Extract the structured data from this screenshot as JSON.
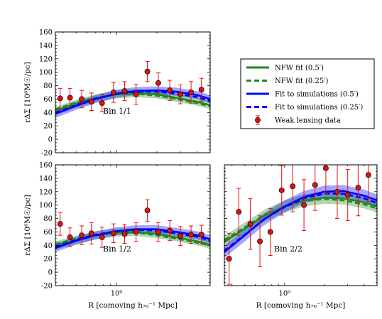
{
  "chart_data": [
    {
      "type": "line",
      "panel_label": "Bin 1/1",
      "xlabel": "",
      "ylabel": "rΔΣ [10⁶M☉/pc]",
      "xscale": "log",
      "xlim": [
        0.35,
        5.0
      ],
      "ylim": [
        -20,
        160
      ],
      "yticks": [
        -20,
        0,
        20,
        40,
        60,
        80,
        100,
        120,
        140,
        160
      ],
      "xtick_labels": [],
      "series": [
        {
          "name": "NFW fit (0.5′)",
          "style": "solid",
          "color": "#1f8a1f",
          "x": [
            0.35,
            0.5,
            0.7,
            1.0,
            1.4,
            2.0,
            2.8,
            4.0,
            5.0
          ],
          "y": [
            42,
            53,
            61,
            67,
            69,
            67,
            62,
            56,
            51
          ],
          "band": 6
        },
        {
          "name": "NFW fit (0.25′)",
          "style": "dashed",
          "color": "#1f8a1f",
          "x": [
            0.35,
            0.5,
            0.7,
            1.0,
            1.4,
            2.0,
            2.8,
            4.0,
            5.0
          ],
          "y": [
            45,
            55,
            62,
            67,
            68,
            65,
            60,
            54,
            49
          ]
        },
        {
          "name": "Fit to simulations (0.5′)",
          "style": "solid",
          "color": "#0000ff",
          "x": [
            0.35,
            0.5,
            0.7,
            1.0,
            1.4,
            2.0,
            2.8,
            4.0,
            5.0
          ],
          "y": [
            38,
            50,
            60,
            68,
            72,
            73,
            71,
            66,
            60
          ],
          "band": 6
        },
        {
          "name": "Fit to simulations (0.25′)",
          "style": "dashed",
          "color": "#0000ff",
          "x": [
            0.35,
            0.5,
            0.7,
            1.0,
            1.4,
            2.0,
            2.8,
            4.0,
            5.0
          ],
          "y": [
            40,
            51,
            61,
            68,
            71,
            71,
            68,
            63,
            57
          ]
        },
        {
          "name": "Weak lensing data",
          "style": "errorbar",
          "color": "#dd1111",
          "x": [
            0.38,
            0.45,
            0.55,
            0.65,
            0.78,
            0.95,
            1.15,
            1.4,
            1.7,
            2.05,
            2.5,
            3.0,
            3.6,
            4.3
          ],
          "y": [
            61,
            62,
            60,
            56,
            54,
            70,
            72,
            67,
            101,
            84,
            73,
            67,
            70,
            74
          ],
          "err": [
            15,
            14,
            13,
            13,
            13,
            15,
            14,
            15,
            15,
            15,
            15,
            14,
            16,
            17
          ]
        }
      ]
    },
    {
      "type": "line",
      "panel_label": "Bin 1/2",
      "xlabel": "R [comoving h₇₀⁻¹ Mpc]",
      "ylabel": "rΔΣ [10⁶M☉/pc]",
      "xscale": "log",
      "xlim": [
        0.35,
        5.0
      ],
      "ylim": [
        -20,
        160
      ],
      "yticks": [
        -20,
        0,
        20,
        40,
        60,
        80,
        100,
        120,
        140,
        160
      ],
      "xtick_labels": [
        "10⁰"
      ],
      "series": [
        {
          "name": "NFW fit (0.5′)",
          "style": "solid",
          "color": "#1f8a1f",
          "x": [
            0.35,
            0.5,
            0.7,
            1.0,
            1.4,
            2.0,
            2.8,
            4.0,
            5.0
          ],
          "y": [
            40,
            48,
            55,
            59,
            60,
            57,
            52,
            46,
            41
          ],
          "band": 6
        },
        {
          "name": "NFW fit (0.25′)",
          "style": "dashed",
          "color": "#1f8a1f",
          "x": [
            0.35,
            0.5,
            0.7,
            1.0,
            1.4,
            2.0,
            2.8,
            4.0,
            5.0
          ],
          "y": [
            42,
            50,
            56,
            59,
            59,
            55,
            50,
            44,
            40
          ]
        },
        {
          "name": "Fit to simulations (0.5′)",
          "style": "solid",
          "color": "#0000ff",
          "x": [
            0.35,
            0.5,
            0.7,
            1.0,
            1.4,
            2.0,
            2.8,
            4.0,
            5.0
          ],
          "y": [
            36,
            47,
            55,
            61,
            64,
            64,
            60,
            55,
            49
          ],
          "band": 6
        },
        {
          "name": "Fit to simulations (0.25′)",
          "style": "dashed",
          "color": "#0000ff",
          "x": [
            0.35,
            0.5,
            0.7,
            1.0,
            1.4,
            2.0,
            2.8,
            4.0,
            5.0
          ],
          "y": [
            38,
            48,
            56,
            61,
            63,
            62,
            58,
            53,
            47
          ]
        },
        {
          "name": "Weak lensing data",
          "style": "errorbar",
          "color": "#dd1111",
          "x": [
            0.38,
            0.45,
            0.55,
            0.65,
            0.78,
            0.95,
            1.15,
            1.4,
            1.7,
            2.05,
            2.5,
            3.0,
            3.6,
            4.3
          ],
          "y": [
            72,
            52,
            55,
            58,
            52,
            58,
            57,
            60,
            92,
            60,
            62,
            54,
            56,
            56
          ],
          "err": [
            17,
            14,
            14,
            16,
            15,
            14,
            14,
            14,
            16,
            14,
            15,
            14,
            13,
            14
          ]
        }
      ]
    },
    {
      "type": "line",
      "panel_label": "Bin 2/2",
      "xlabel": "R [comoving h₇₀⁻¹ Mpc]",
      "ylabel": "",
      "xscale": "log",
      "xlim": [
        0.35,
        5.0
      ],
      "ylim": [
        -20,
        160
      ],
      "yticks": [],
      "xtick_labels": [
        "10⁰"
      ],
      "series": [
        {
          "name": "NFW fit (0.5′)",
          "style": "solid",
          "color": "#1f8a1f",
          "x": [
            0.35,
            0.5,
            0.7,
            1.0,
            1.4,
            2.0,
            2.8,
            4.0,
            5.0
          ],
          "y": [
            45,
            65,
            84,
            98,
            107,
            111,
            110,
            104,
            98
          ],
          "band": 9
        },
        {
          "name": "NFW fit (0.25′)",
          "style": "dashed",
          "color": "#1f8a1f",
          "x": [
            0.35,
            0.5,
            0.7,
            1.0,
            1.4,
            2.0,
            2.8,
            4.0,
            5.0
          ],
          "y": [
            48,
            67,
            85,
            98,
            106,
            109,
            107,
            101,
            95
          ]
        },
        {
          "name": "Fit to simulations (0.5′)",
          "style": "solid",
          "color": "#0000ff",
          "x": [
            0.35,
            0.5,
            0.7,
            1.0,
            1.4,
            2.0,
            2.8,
            4.0,
            5.0
          ],
          "y": [
            30,
            55,
            79,
            98,
            112,
            120,
            121,
            114,
            107
          ],
          "band": 9
        },
        {
          "name": "Fit to simulations (0.25′)",
          "style": "dashed",
          "color": "#0000ff",
          "x": [
            0.35,
            0.5,
            0.7,
            1.0,
            1.4,
            2.0,
            2.8,
            4.0,
            5.0
          ],
          "y": [
            32,
            56,
            79,
            97,
            110,
            117,
            117,
            110,
            103
          ]
        },
        {
          "name": "Weak lensing data",
          "style": "errorbar",
          "color": "#dd1111",
          "x": [
            0.38,
            0.45,
            0.55,
            0.65,
            0.78,
            0.95,
            1.15,
            1.4,
            1.7,
            2.05,
            2.5,
            3.0,
            3.6,
            4.3
          ],
          "y": [
            20,
            90,
            72,
            46,
            60,
            122,
            128,
            100,
            130,
            155,
            120,
            115,
            126,
            145
          ],
          "err": [
            38,
            35,
            38,
            38,
            35,
            37,
            38,
            38,
            38,
            38,
            40,
            38,
            42,
            40
          ]
        }
      ]
    }
  ],
  "legend": {
    "placement": "right of top-left panel",
    "items": [
      {
        "label": "NFW fit (0.5′)",
        "style": "solid",
        "color": "#1f8a1f"
      },
      {
        "label": "NFW fit (0.25′)",
        "style": "dashed",
        "color": "#1f8a1f"
      },
      {
        "label": "Fit to simulations (0.5′)",
        "style": "solid",
        "color": "#0000ff"
      },
      {
        "label": "Fit to simulations (0.25′)",
        "style": "dashed",
        "color": "#0000ff"
      },
      {
        "label": "Weak lensing data",
        "style": "errorbar",
        "color": "#dd1111"
      }
    ]
  }
}
